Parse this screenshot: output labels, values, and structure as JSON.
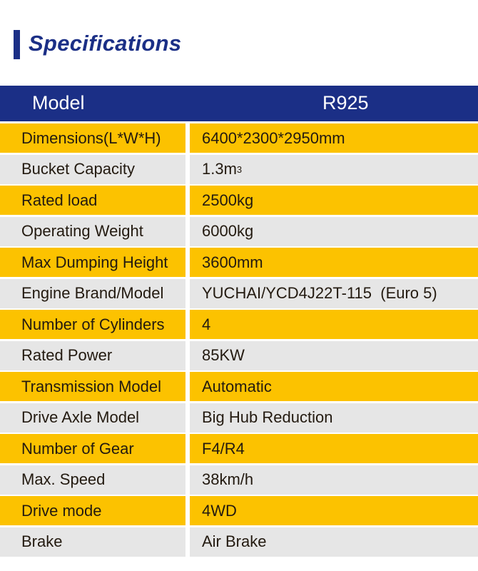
{
  "title": "Specifications",
  "colors": {
    "accent": "#1b2f86",
    "highlight_row": "#fcc200",
    "plain_row": "#e6e6e6"
  },
  "header": {
    "label": "Model",
    "value": "R925"
  },
  "rows": [
    {
      "label": "Dimensions(L*W*H)",
      "value": "6400*2300*2950mm"
    },
    {
      "label": "Bucket Capacity",
      "value": "1.3m",
      "sup": "3"
    },
    {
      "label": "Rated load",
      "value": "2500kg"
    },
    {
      "label": "Operating Weight",
      "value": "6000kg"
    },
    {
      "label": "Max Dumping Height",
      "value": "3600mm"
    },
    {
      "label": "Engine Brand/Model",
      "value": "YUCHAI/YCD4J22T-115  (Euro 5)"
    },
    {
      "label": "Number of Cylinders",
      "value": "4"
    },
    {
      "label": "Rated Power",
      "value": "85KW"
    },
    {
      "label": "Transmission Model",
      "value": "Automatic"
    },
    {
      "label": "Drive Axle Model",
      "value": "Big Hub Reduction"
    },
    {
      "label": "Number of Gear",
      "value": "F4/R4"
    },
    {
      "label": "Max. Speed",
      "value": "38km/h"
    },
    {
      "label": "Drive mode",
      "value": "4WD"
    },
    {
      "label": "Brake",
      "value": "Air Brake"
    }
  ]
}
